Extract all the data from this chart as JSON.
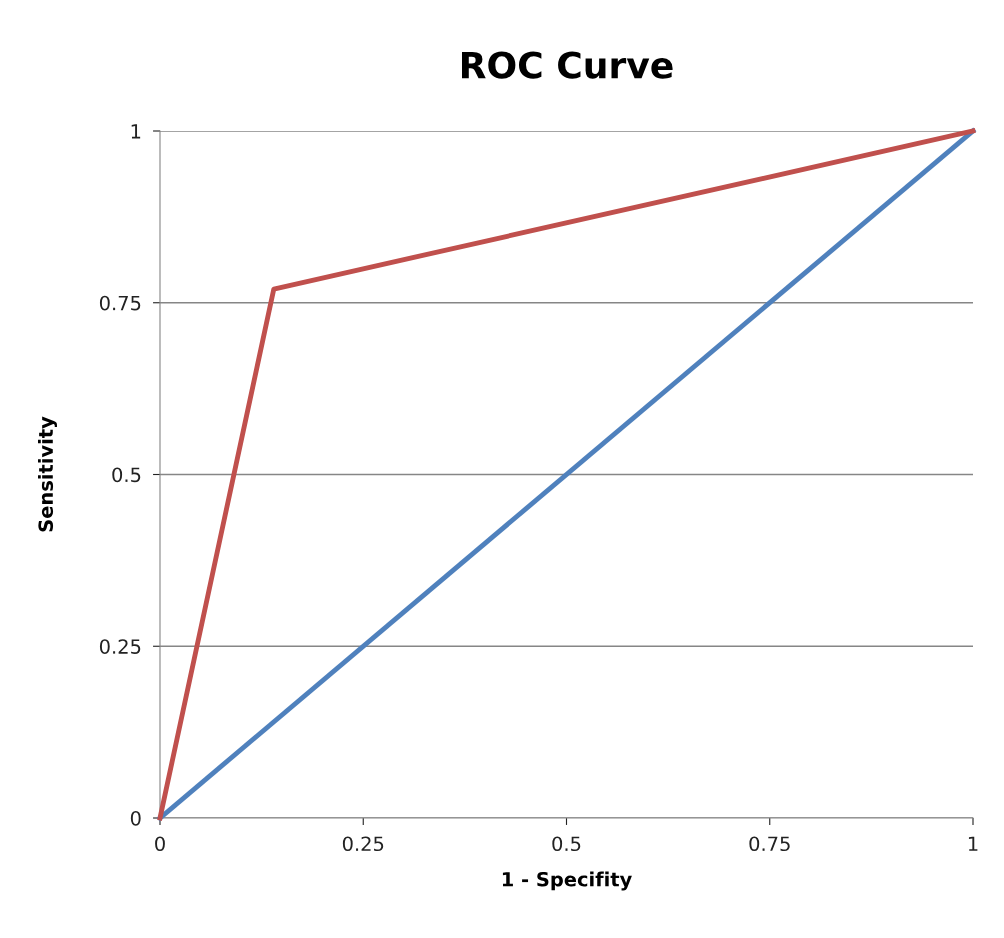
{
  "chart_data": {
    "type": "line",
    "title": "ROC Curve",
    "xlabel": "1 - Specifity",
    "ylabel": "Sensitivity",
    "series": [
      {
        "color": "#4f81bd",
        "x": [
          0,
          1
        ],
        "values": [
          0,
          1
        ]
      },
      {
        "color": "#c0504d",
        "x": [
          0,
          0.14,
          1
        ],
        "values": [
          0,
          0.77,
          1
        ]
      }
    ],
    "xlim": [
      0,
      1
    ],
    "ylim": [
      0,
      1
    ],
    "xticks": [
      0,
      0.25,
      0.5,
      0.75,
      1
    ],
    "yticks": [
      0,
      0.25,
      0.5,
      0.75,
      1
    ],
    "grid": "y",
    "marker": "none",
    "line_style": "solid"
  }
}
